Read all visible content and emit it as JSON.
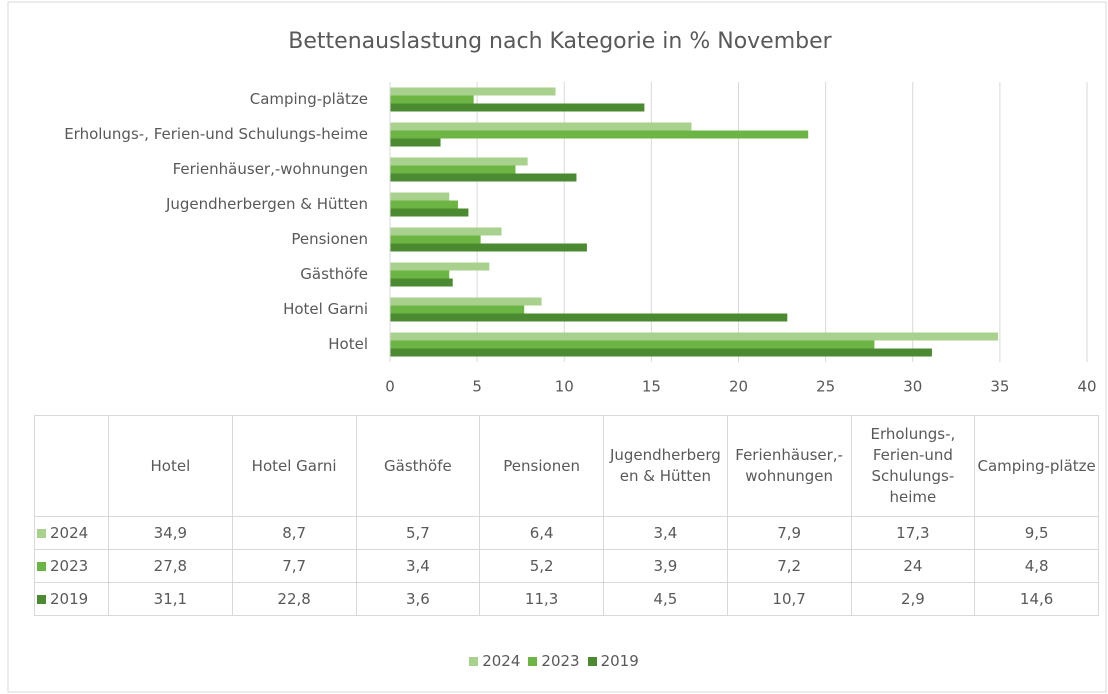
{
  "chart_data": {
    "type": "hbar",
    "title": "Bettenauslastung nach Kategorie in % November",
    "categories": [
      "Hotel",
      "Hotel Garni",
      "Gästhöfe",
      "Pensionen",
      "Jugendherbergen & Hütten",
      "Ferienhäuser,-wohnungen",
      "Erholungs-, Ferien-und Schulungs-heime",
      "Camping-plätze"
    ],
    "series": [
      {
        "name": "2024",
        "color": "#a9d18e",
        "values": [
          34.9,
          8.7,
          5.7,
          6.4,
          3.4,
          7.9,
          17.3,
          9.5
        ],
        "value_labels": [
          "34,9",
          "8,7",
          "5,7",
          "6,4",
          "3,4",
          "7,9",
          "17,3",
          "9,5"
        ]
      },
      {
        "name": "2023",
        "color": "#6cb544",
        "values": [
          27.8,
          7.7,
          3.4,
          5.2,
          3.9,
          7.2,
          24,
          4.8
        ],
        "value_labels": [
          "27,8",
          "7,7",
          "3,4",
          "5,2",
          "3,9",
          "7,2",
          "24",
          "4,8"
        ]
      },
      {
        "name": "2019",
        "color": "#4b8a30",
        "values": [
          31.1,
          22.8,
          3.6,
          11.3,
          4.5,
          10.7,
          2.9,
          14.6
        ],
        "value_labels": [
          "31,1",
          "22,8",
          "3,6",
          "11,3",
          "4,5",
          "10,7",
          "2,9",
          "14,6"
        ]
      }
    ],
    "xlim": [
      0,
      40
    ],
    "xticks": [
      0,
      5,
      10,
      15,
      20,
      25,
      30,
      35,
      40
    ],
    "grid": true,
    "legend": "bottom"
  }
}
